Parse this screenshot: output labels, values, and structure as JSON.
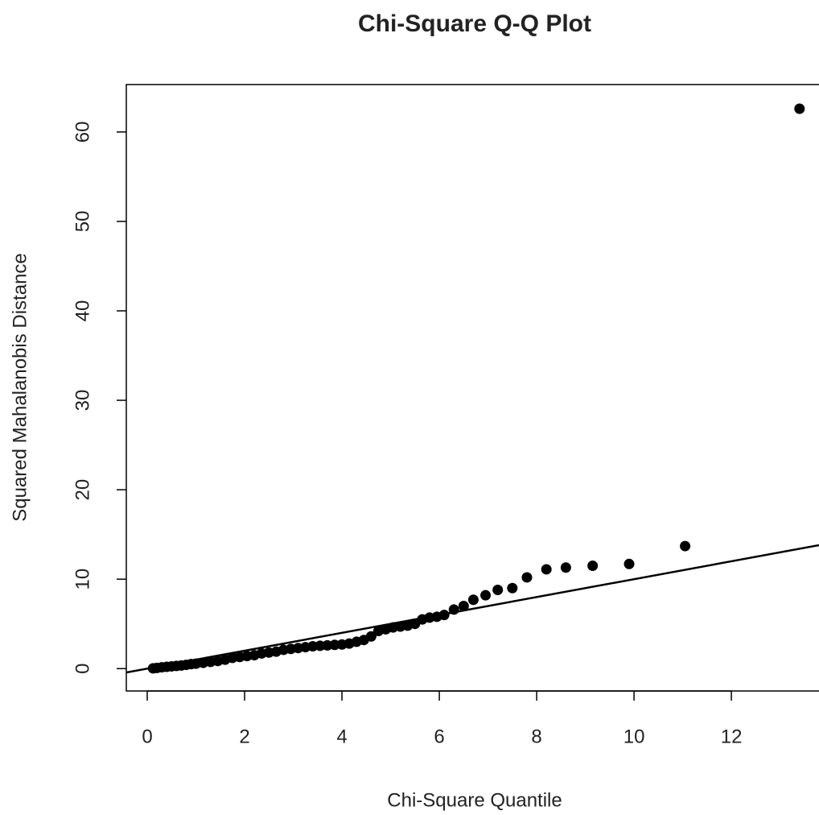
{
  "chart_data": {
    "type": "scatter",
    "title": "Chi-Square Q-Q Plot",
    "x_label": "Chi-Square Quantile",
    "y_label": "Squared Mahalanobis Distance",
    "color": "#000000",
    "x": [
      0.12,
      0.2,
      0.3,
      0.4,
      0.5,
      0.6,
      0.7,
      0.8,
      0.9,
      1.0,
      1.15,
      1.3,
      1.45,
      1.6,
      1.75,
      1.9,
      2.05,
      2.2,
      2.35,
      2.5,
      2.65,
      2.8,
      2.95,
      3.1,
      3.25,
      3.4,
      3.55,
      3.7,
      3.85,
      4.0,
      4.15,
      4.3,
      4.45,
      4.6,
      4.75,
      4.9,
      5.05,
      5.2,
      5.35,
      5.5,
      5.65,
      5.8,
      5.95,
      6.1,
      6.3,
      6.5,
      6.7,
      6.95,
      7.2,
      7.5,
      7.8,
      8.2,
      8.6,
      9.15,
      9.9,
      11.05,
      13.4
    ],
    "y": [
      0.03,
      0.08,
      0.15,
      0.2,
      0.25,
      0.3,
      0.35,
      0.42,
      0.5,
      0.55,
      0.65,
      0.75,
      0.85,
      1.0,
      1.2,
      1.3,
      1.4,
      1.5,
      1.7,
      1.8,
      1.9,
      2.1,
      2.2,
      2.3,
      2.4,
      2.5,
      2.55,
      2.6,
      2.65,
      2.7,
      2.8,
      3.0,
      3.2,
      3.6,
      4.2,
      4.4,
      4.6,
      4.7,
      4.8,
      5.0,
      5.5,
      5.7,
      5.8,
      6.0,
      6.6,
      7.0,
      7.7,
      8.2,
      8.8,
      9.0,
      10.2,
      11.1,
      11.3,
      11.5,
      11.7,
      13.7,
      62.6
    ],
    "line": {
      "intercept": 0,
      "slope": 1
    },
    "xlim": [
      -0.43,
      13.8
    ],
    "ylim": [
      -2.5,
      65.3
    ],
    "xticks": [
      0,
      2,
      4,
      6,
      8,
      10,
      12
    ],
    "yticks": [
      0,
      10,
      20,
      30,
      40,
      50,
      60
    ]
  }
}
